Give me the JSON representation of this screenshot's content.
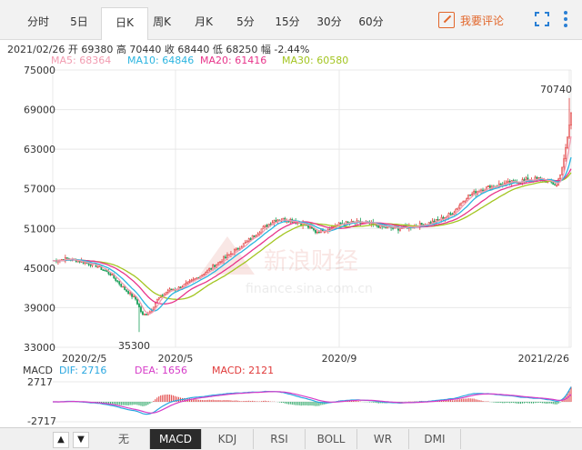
{
  "tabs": [
    {
      "label": "分时",
      "active": false
    },
    {
      "label": "5日",
      "active": false
    },
    {
      "label": "日K",
      "active": true
    },
    {
      "label": "周K",
      "active": false
    },
    {
      "label": "月K",
      "active": false
    },
    {
      "label": "5分",
      "active": false
    },
    {
      "label": "15分",
      "active": false
    },
    {
      "label": "30分",
      "active": false
    },
    {
      "label": "60分",
      "active": false
    }
  ],
  "comment_button": "我要评论",
  "info": {
    "date": "2021/02/26",
    "open_label": "开",
    "open": "69380",
    "high_label": "高",
    "high": "70440",
    "close_label": "收",
    "close": "68440",
    "low_label": "低",
    "low": "68250",
    "change_label": "幅",
    "change": "-2.44%"
  },
  "ma": {
    "ma5": "MA5: 68364",
    "ma10": "MA10: 64846",
    "ma20": "MA20: 61416",
    "ma30": "MA30: 60580",
    "colors": {
      "ma5": "#f29bb0",
      "ma10": "#2bb5e0",
      "ma20": "#e8348a",
      "ma30": "#a3c520"
    }
  },
  "colors": {
    "up": "#e03a3a",
    "down": "#1aa05a",
    "grid": "#e8e8e8",
    "dif": "#2aa7e0",
    "dea": "#d63bc8",
    "macd": "#e03a3a"
  },
  "chart_data": {
    "type": "candlestick",
    "y_ticks": [
      "75000",
      "69000",
      "63000",
      "57000",
      "51000",
      "45000",
      "39000",
      "33000"
    ],
    "ylim": [
      33000,
      75000
    ],
    "x_ticks": [
      "2020/2/5",
      "2020/5",
      "2020/9",
      "2021/2/26"
    ],
    "annotations": {
      "max": "70740",
      "min": "35300"
    },
    "close_path": [
      [
        0,
        46100
      ],
      [
        8,
        46400
      ],
      [
        16,
        46000
      ],
      [
        24,
        45400
      ],
      [
        32,
        44100
      ],
      [
        40,
        41800
      ],
      [
        46,
        40300
      ],
      [
        50,
        37800
      ],
      [
        54,
        38400
      ],
      [
        58,
        40200
      ],
      [
        64,
        41600
      ],
      [
        70,
        42000
      ],
      [
        76,
        42800
      ],
      [
        84,
        44200
      ],
      [
        92,
        45800
      ],
      [
        100,
        47400
      ],
      [
        108,
        49000
      ],
      [
        116,
        50900
      ],
      [
        124,
        52400
      ],
      [
        132,
        52300
      ],
      [
        140,
        51600
      ],
      [
        146,
        50500
      ],
      [
        152,
        50900
      ],
      [
        160,
        51700
      ],
      [
        168,
        51900
      ],
      [
        176,
        51700
      ],
      [
        184,
        51200
      ],
      [
        192,
        51000
      ],
      [
        198,
        51300
      ],
      [
        206,
        51600
      ],
      [
        214,
        52200
      ],
      [
        222,
        53300
      ],
      [
        230,
        55800
      ],
      [
        238,
        56900
      ],
      [
        246,
        57500
      ],
      [
        254,
        57900
      ],
      [
        262,
        58300
      ],
      [
        270,
        58500
      ],
      [
        276,
        58100
      ],
      [
        280,
        57500
      ],
      [
        284,
        61300
      ],
      [
        286,
        64800
      ],
      [
        288,
        68440
      ]
    ],
    "macd": {
      "dif": "DIF: 2716",
      "dea": "DEA: 1656",
      "macd": "MACD: 2121",
      "y_ticks": [
        "2717",
        "-2717"
      ],
      "ylim": [
        -2717,
        2717
      ]
    }
  },
  "bottom": {
    "up_arrow": "▲",
    "down_arrow": "▼",
    "indicators": [
      {
        "label": "无",
        "active": false
      },
      {
        "label": "MACD",
        "active": true
      },
      {
        "label": "KDJ",
        "active": false
      },
      {
        "label": "RSI",
        "active": false
      },
      {
        "label": "BOLL",
        "active": false
      },
      {
        "label": "WR",
        "active": false
      },
      {
        "label": "DMI",
        "active": false
      }
    ]
  }
}
